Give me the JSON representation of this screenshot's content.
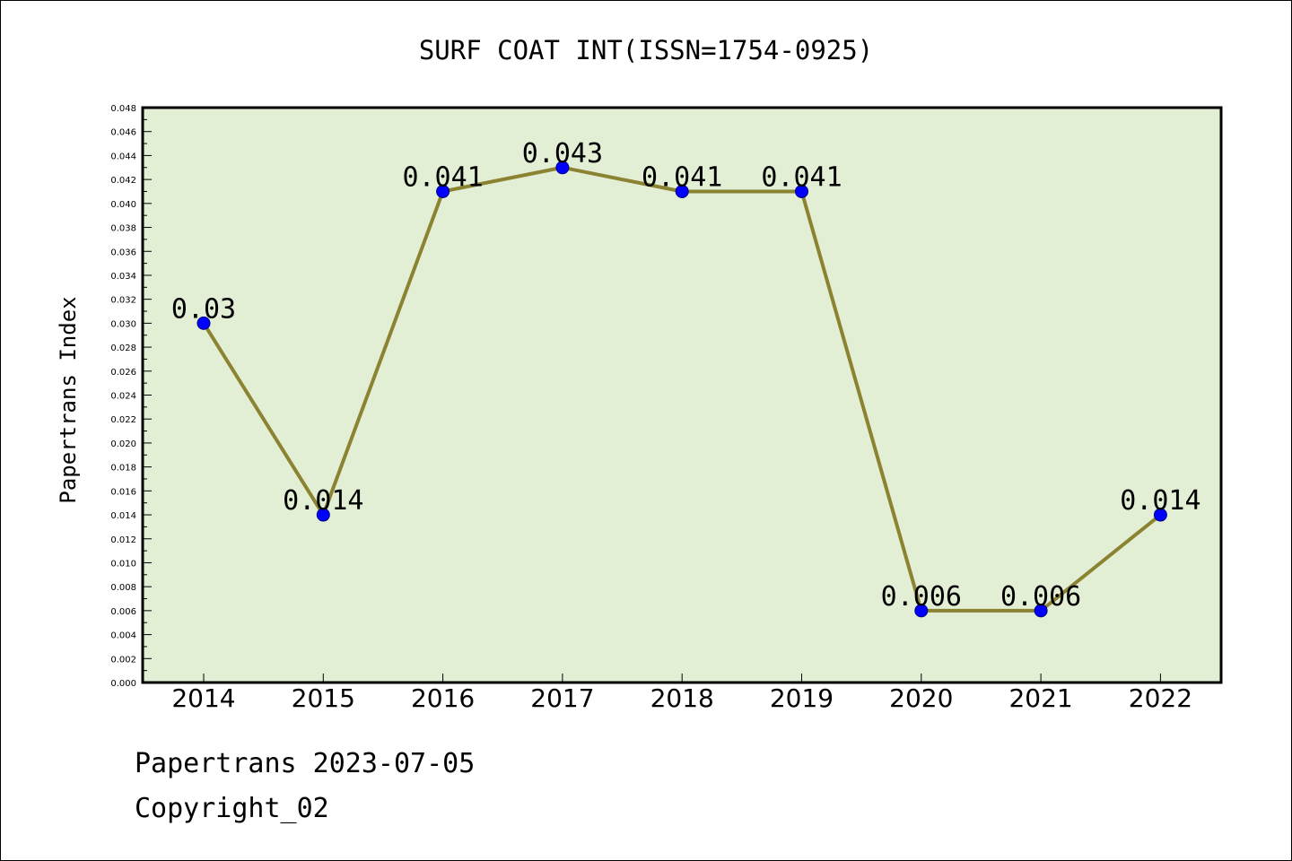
{
  "chart_data": {
    "type": "line",
    "title": "SURF COAT INT(ISSN=1754-0925)",
    "xlabel": "",
    "ylabel": "Papertrans Index",
    "categories": [
      "2014",
      "2015",
      "2016",
      "2017",
      "2018",
      "2019",
      "2020",
      "2021",
      "2022"
    ],
    "series": [
      {
        "values": [
          0.03,
          0.014,
          0.041,
          0.043,
          0.041,
          0.041,
          0.006,
          0.006,
          0.014
        ],
        "data_labels": [
          "0.03",
          "0.014",
          "0.041",
          "0.043",
          "0.041",
          "0.041",
          "0.006",
          "0.006",
          "0.014"
        ]
      }
    ],
    "ylim": [
      0,
      0.048
    ],
    "y_major_step": 0.002,
    "y_minor_step": 0.001,
    "y_tick_decimals": 3,
    "grid": false,
    "legend": "none",
    "colors": {
      "plot_background": "#e2efd5",
      "line": "#8b8232",
      "marker_fill": "#0000ff",
      "marker_edge": "#000080",
      "axis": "#000000"
    }
  },
  "footer": {
    "line1": "Papertrans 2023-07-05",
    "line2": "Copyright_02"
  }
}
